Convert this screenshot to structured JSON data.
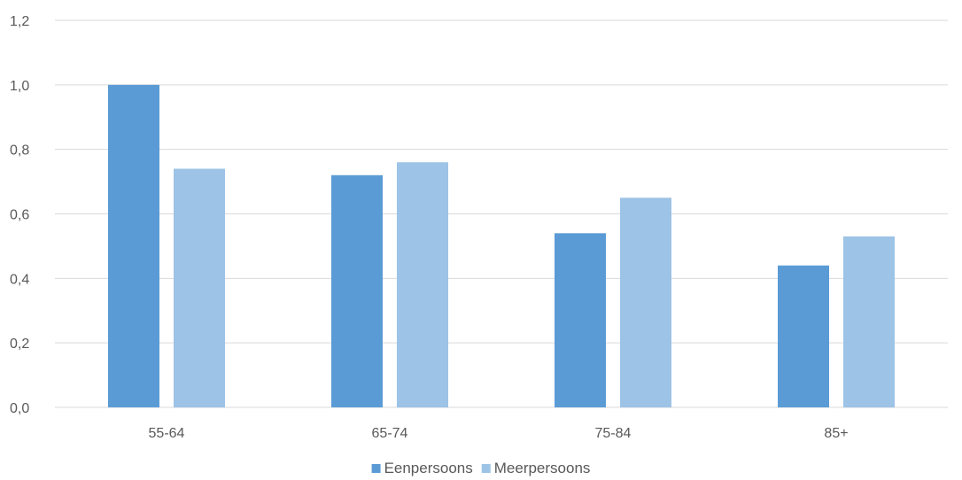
{
  "chart_data": {
    "type": "bar",
    "title": "",
    "xlabel": "",
    "ylabel": "",
    "categories": [
      "55-64",
      "65-74",
      "75-84",
      "85+"
    ],
    "series": [
      {
        "name": "Eenpersoons",
        "color": "#5b9bd5",
        "values": [
          1.0,
          0.72,
          0.54,
          0.44
        ]
      },
      {
        "name": "Meerpersoons",
        "color": "#9dc3e6",
        "values": [
          0.74,
          0.76,
          0.65,
          0.53
        ]
      }
    ],
    "ylim": [
      0,
      1.2
    ],
    "yticks": [
      "0,0",
      "0,2",
      "0,4",
      "0,6",
      "0,8",
      "1,0",
      "1,2"
    ],
    "grid": true,
    "legend_position": "bottom"
  }
}
